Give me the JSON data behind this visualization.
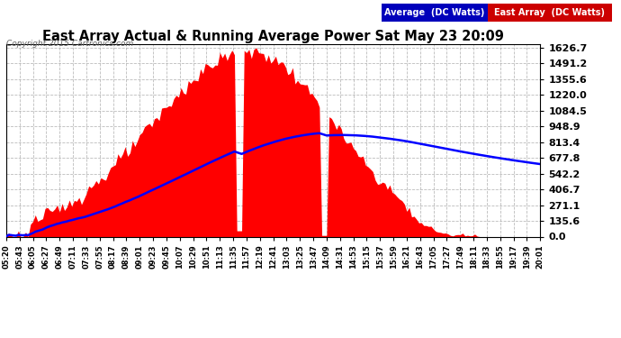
{
  "title": "East Array Actual & Running Average Power Sat May 23 20:09",
  "copyright": "Copyright 2015 Cartronics.com",
  "legend_avg": "Average  (DC Watts)",
  "legend_east": "East Array  (DC Watts)",
  "yticks": [
    0.0,
    135.6,
    271.1,
    406.7,
    542.2,
    677.8,
    813.4,
    948.9,
    1084.5,
    1220.0,
    1355.6,
    1491.2,
    1626.7
  ],
  "ymax": 1626.7,
  "bg_color": "#ffffff",
  "plot_bg_color": "#ffffff",
  "grid_color": "#aaaaaa",
  "title_color": "#000000",
  "east_array_color": "#ff0000",
  "avg_line_color": "#0000ff",
  "copyright_color": "#666666",
  "xtick_labels": [
    "05:20",
    "05:43",
    "06:05",
    "06:27",
    "06:49",
    "07:11",
    "07:33",
    "07:55",
    "08:17",
    "08:39",
    "09:01",
    "09:23",
    "09:45",
    "10:07",
    "10:29",
    "10:51",
    "11:13",
    "11:35",
    "11:57",
    "12:19",
    "12:41",
    "13:03",
    "13:25",
    "13:47",
    "14:09",
    "14:31",
    "14:53",
    "15:15",
    "15:37",
    "15:59",
    "16:21",
    "16:43",
    "17:05",
    "17:27",
    "17:49",
    "18:11",
    "18:33",
    "18:55",
    "19:17",
    "19:39",
    "20:01"
  ]
}
